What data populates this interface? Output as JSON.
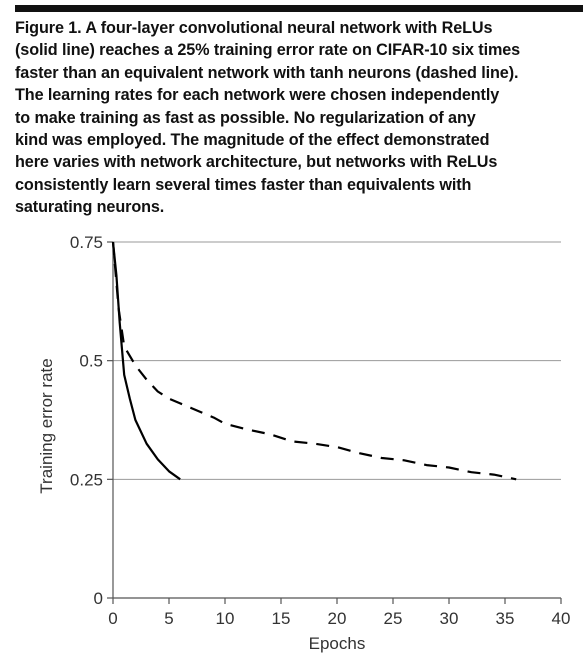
{
  "figure": {
    "caption": "Figure 1. A four-layer convolutional neural network with ReLUs\n(solid line) reaches a 25% training error rate on CIFAR-10 six times\nfaster than an equivalent network with tanh neurons (dashed line).\nThe learning rates for each network were chosen independently\nto make training as fast as possible. No regularization of any\nkind was employed. The magnitude of the effect demonstrated\nhere varies with network architecture, but networks with ReLUs\nconsistently learn several times faster than equivalents with\nsaturating neurons."
  },
  "chart_data": {
    "type": "line",
    "xlabel": "Epochs",
    "ylabel": "Training error rate",
    "xlim": [
      0,
      40
    ],
    "ylim": [
      0,
      0.75
    ],
    "xticks": [
      0,
      5,
      10,
      15,
      20,
      25,
      30,
      35,
      40
    ],
    "yticks": [
      0,
      0.25,
      0.5,
      0.75
    ],
    "ytick_labels": [
      "0",
      "0.25",
      "0.5",
      "0.75"
    ],
    "grid": "horizontal",
    "series": [
      {
        "style": "solid",
        "color": "#000000",
        "x": [
          0,
          0.3,
          0.6,
          1,
          1.5,
          2,
          3,
          4,
          5,
          6
        ],
        "y": [
          0.75,
          0.68,
          0.58,
          0.47,
          0.42,
          0.375,
          0.325,
          0.292,
          0.267,
          0.25
        ]
      },
      {
        "style": "dashed",
        "color": "#000000",
        "x": [
          0,
          0.5,
          1,
          2,
          3,
          4,
          5,
          6,
          7,
          8,
          9,
          10,
          12,
          14,
          16,
          18,
          20,
          22,
          24,
          26,
          28,
          30,
          32,
          34,
          36
        ],
        "y": [
          0.75,
          0.61,
          0.53,
          0.49,
          0.46,
          0.435,
          0.42,
          0.41,
          0.4,
          0.39,
          0.38,
          0.367,
          0.355,
          0.345,
          0.33,
          0.325,
          0.318,
          0.305,
          0.295,
          0.29,
          0.28,
          0.275,
          0.265,
          0.26,
          0.25
        ]
      }
    ]
  }
}
